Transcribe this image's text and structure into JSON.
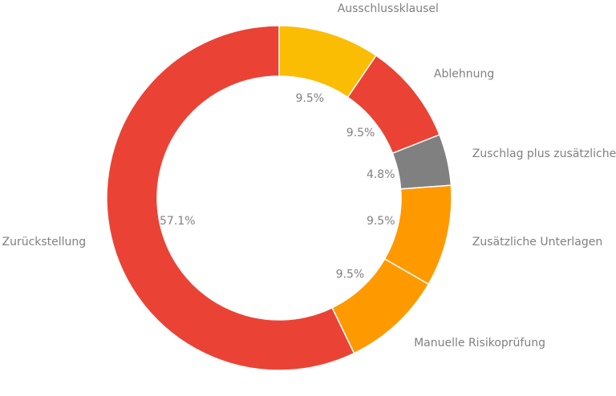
{
  "chart_data": {
    "type": "pie",
    "donut": true,
    "slices": [
      {
        "label": "Ausschlussklausel",
        "value": 9.5,
        "pct_text": "9.5%",
        "color": "#FBBC04"
      },
      {
        "label": "Ablehnung",
        "value": 9.5,
        "pct_text": "9.5%",
        "color": "#EA4335"
      },
      {
        "label": "Zuschlag plus zusätzliche Unterlagen",
        "value": 4.8,
        "pct_text": "4.8%",
        "color": "#808080"
      },
      {
        "label": "Zusätzliche Unterlagen",
        "value": 9.5,
        "pct_text": "9.5%",
        "color": "#FF9900"
      },
      {
        "label": "Manuelle Risikoprüfung",
        "value": 9.5,
        "pct_text": "9.5%",
        "color": "#FF9900"
      },
      {
        "label": "Zurückstellung",
        "value": 57.1,
        "pct_text": "57.1%",
        "color": "#EA4335"
      }
    ],
    "start": "12 o'clock",
    "direction": "clockwise",
    "legend": "none"
  }
}
